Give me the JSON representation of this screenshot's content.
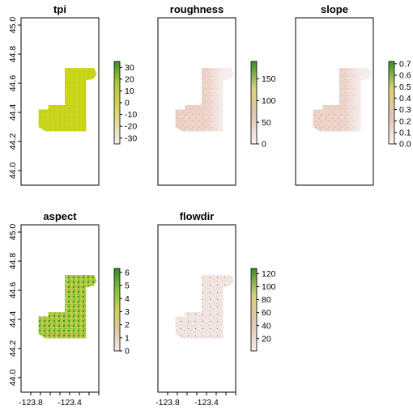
{
  "chart_data": [
    {
      "type": "heatmap",
      "title": "tpi",
      "xlim": [
        -123.9,
        -123.1
      ],
      "ylim": [
        43.9,
        45.05
      ],
      "yticks": [
        "44.0",
        "44.2",
        "44.4",
        "44.6",
        "44.8",
        "45.0"
      ],
      "xticks": [],
      "legend": {
        "range": [
          -35,
          35
        ],
        "ticks": [
          "-30",
          "-20",
          "-10",
          "0",
          "10",
          "20",
          "30"
        ],
        "colors": [
          "#f0f0f0",
          "#e6dca0",
          "#d2d250",
          "#aacc30",
          "#3a8f2a"
        ]
      },
      "map_fill": "#c8d61e"
    },
    {
      "type": "heatmap",
      "title": "roughness",
      "xlim": [
        -123.9,
        -123.1
      ],
      "ylim": [
        43.9,
        45.05
      ],
      "yticks": [],
      "xticks": [],
      "legend": {
        "range": [
          0,
          190
        ],
        "ticks": [
          "0",
          "50",
          "100",
          "150"
        ],
        "colors": [
          "#f5f2f2",
          "#e8c4b4",
          "#d8d37a",
          "#3a8f2a"
        ]
      },
      "map_fill": "#e8c8bc"
    },
    {
      "type": "heatmap",
      "title": "slope",
      "xlim": [
        -123.9,
        -123.1
      ],
      "ylim": [
        43.9,
        45.05
      ],
      "yticks": [],
      "xticks": [],
      "legend": {
        "range": [
          0,
          0.72
        ],
        "ticks": [
          "0.0",
          "0.1",
          "0.2",
          "0.3",
          "0.4",
          "0.5",
          "0.6",
          "0.7"
        ],
        "colors": [
          "#f5f2f2",
          "#e8c4b4",
          "#d8d37a",
          "#3a8f2a"
        ]
      },
      "map_fill": "#e8c8bc"
    },
    {
      "type": "heatmap",
      "title": "aspect",
      "xlim": [
        -123.9,
        -123.1
      ],
      "ylim": [
        43.9,
        45.05
      ],
      "yticks": [
        "44.0",
        "44.2",
        "44.4",
        "44.6",
        "44.8",
        "45.0"
      ],
      "xticks": [
        "-123.8",
        "-123.4"
      ],
      "legend": {
        "range": [
          0,
          6.3
        ],
        "ticks": [
          "0",
          "1",
          "2",
          "3",
          "4",
          "5",
          "6"
        ],
        "colors": [
          "#f5eaea",
          "#e0c9a2",
          "#cfd050",
          "#7fbf3a",
          "#2f8f2a"
        ]
      },
      "map_fill": "#b4c83c"
    },
    {
      "type": "heatmap",
      "title": "flowdir",
      "xlim": [
        -123.9,
        -123.1
      ],
      "ylim": [
        43.9,
        45.05
      ],
      "yticks": [],
      "xticks": [
        "-123.8",
        "-123.4"
      ],
      "legend": {
        "range": [
          1,
          128
        ],
        "ticks": [
          "20",
          "40",
          "60",
          "80",
          "100",
          "120"
        ],
        "colors": [
          "#f5eaea",
          "#e8c4b4",
          "#d8d37a",
          "#3a8f2a"
        ]
      },
      "map_fill": "#f1e3e3"
    }
  ]
}
